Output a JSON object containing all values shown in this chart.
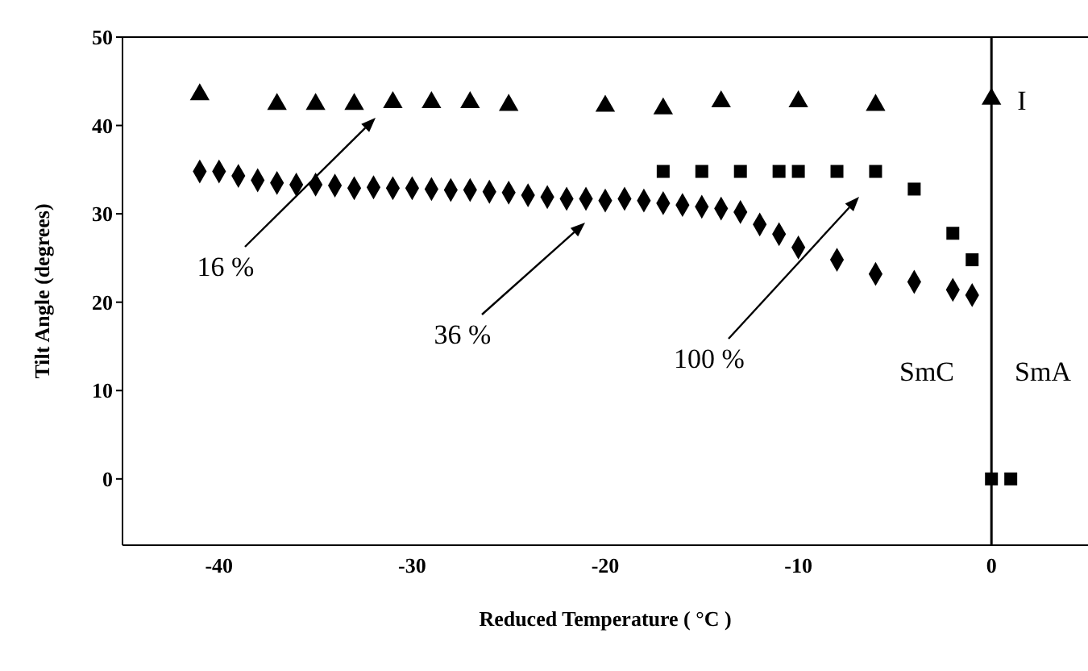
{
  "chart_data": {
    "type": "scatter",
    "xlabel": "Reduced Temperature ( °C )",
    "ylabel": "Tilt Angle (degrees)",
    "xlim": [
      -45,
      5
    ],
    "xticks": [
      -40,
      -30,
      -20,
      -10,
      0
    ],
    "ylim": [
      -7.5,
      50
    ],
    "yticks": [
      0,
      10,
      20,
      30,
      40,
      50
    ],
    "grid": false,
    "legend": false,
    "series": [
      {
        "color": "#000000",
        "marker": "triangle",
        "x": [
          -41,
          -37,
          -35,
          -33,
          -31,
          -29,
          -27,
          -25,
          -20,
          -17,
          -14,
          -10,
          -6,
          0
        ],
        "values": [
          43.5,
          42.4,
          42.4,
          42.4,
          42.6,
          42.6,
          42.6,
          42.3,
          42.2,
          41.9,
          42.7,
          42.7,
          42.3,
          43.0
        ]
      },
      {
        "color": "#000000",
        "marker": "diamond",
        "x": [
          -41,
          -40,
          -39,
          -38,
          -37,
          -36,
          -35,
          -34,
          -33,
          -32,
          -31,
          -30,
          -29,
          -28,
          -27,
          -26,
          -25,
          -24,
          -23,
          -22,
          -21,
          -20,
          -19,
          -18,
          -17,
          -16,
          -15,
          -14,
          -13,
          -12,
          -11,
          -10,
          -8,
          -6,
          -4,
          -2,
          -1
        ],
        "values": [
          34.8,
          34.8,
          34.3,
          33.8,
          33.5,
          33.3,
          33.3,
          33.2,
          32.9,
          33.0,
          32.9,
          32.9,
          32.8,
          32.7,
          32.7,
          32.5,
          32.4,
          32.1,
          31.9,
          31.7,
          31.7,
          31.5,
          31.7,
          31.5,
          31.2,
          31.0,
          30.8,
          30.6,
          30.2,
          28.8,
          27.7,
          26.2,
          24.8,
          23.2,
          22.3,
          21.4,
          20.8
        ]
      },
      {
        "color": "#000000",
        "marker": "square",
        "x": [
          -17,
          -15,
          -13,
          -11,
          -10,
          -8,
          -6,
          -4,
          -2,
          -1,
          0,
          1
        ],
        "values": [
          34.8,
          34.8,
          34.8,
          34.8,
          34.8,
          34.8,
          34.8,
          32.8,
          27.8,
          24.8,
          0,
          0
        ]
      }
    ],
    "ref_lines": [
      {
        "axis": "x",
        "value": 0,
        "color": "#000000",
        "line_style": "solid"
      }
    ],
    "annotations": [
      "16 %",
      "36 %",
      "100 %",
      "I",
      "SmC",
      "SmA"
    ]
  }
}
